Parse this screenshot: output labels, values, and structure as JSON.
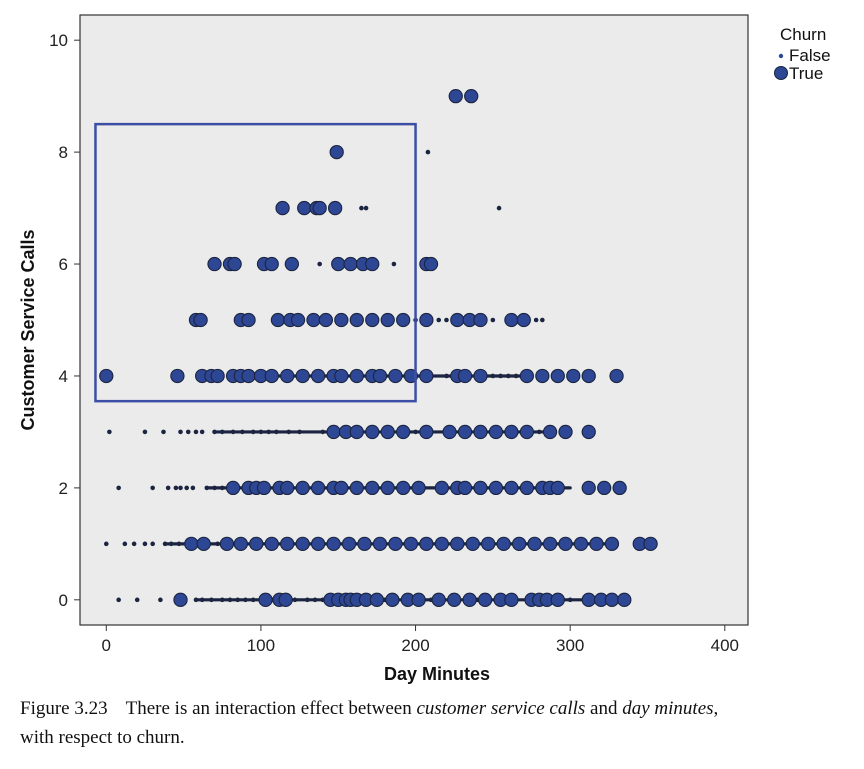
{
  "figure": {
    "caption_number": "Figure 3.23",
    "caption_parts": [
      "There is an interaction effect between ",
      "customer service calls",
      " and ",
      "day minutes",
      ",",
      "with respect to churn."
    ]
  },
  "chart_data": {
    "type": "scatter",
    "xlabel": "Day Minutes",
    "ylabel": "Customer Service Calls",
    "xlim": [
      -17,
      415
    ],
    "ylim": [
      -0.45,
      10.45
    ],
    "xticks": [
      0,
      100,
      200,
      300,
      400
    ],
    "yticks": [
      0,
      2,
      4,
      6,
      8,
      10
    ],
    "grid": false,
    "background": "#ebebeb",
    "marker_color": "#2d4795",
    "marker_edge": "#1b2440",
    "highlight_box": {
      "x_range": [
        -7,
        200
      ],
      "y_range": [
        3.55,
        8.5
      ],
      "color": "#3c4ea6"
    },
    "legend": {
      "title": "Churn",
      "entries": [
        "False",
        "True"
      ],
      "placement": "outside-top-right"
    },
    "series": [
      {
        "name": "False",
        "marker": "small",
        "rows": [
          {
            "y": 0,
            "x": [
              8,
              20,
              35,
              50,
              58,
              62,
              68,
              75,
              80,
              85,
              90,
              95,
              102,
              108,
              122,
              130,
              135,
              140,
              148,
              160,
              170,
              180,
              195,
              210,
              225,
              240,
              255,
              265,
              280,
              290,
              300,
              315,
              322,
              330
            ],
            "dense": [
              [
                58,
                100
              ],
              [
                120,
                335
              ]
            ]
          },
          {
            "y": 1,
            "x": [
              0,
              12,
              18,
              25,
              30,
              38,
              42,
              47,
              52,
              56,
              60,
              66,
              72,
              78,
              85,
              95,
              105,
              120,
              140,
              160,
              180,
              200,
              220,
              240,
              260,
              280,
              300,
              320,
              330
            ],
            "dense": [
              [
                38,
                330
              ]
            ]
          },
          {
            "y": 2,
            "x": [
              8,
              30,
              40,
              45,
              48,
              52,
              56,
              65,
              70,
              75,
              80,
              95,
              110,
              125,
              140,
              155,
              175,
              195,
              215,
              235,
              255,
              275,
              295
            ],
            "dense": [
              [
                65,
                300
              ]
            ]
          },
          {
            "y": 3,
            "x": [
              2,
              25,
              37,
              48,
              53,
              58,
              62,
              70,
              75,
              82,
              88,
              95,
              100,
              105,
              110,
              118,
              125,
              140,
              160,
              180,
              200,
              220,
              240,
              255,
              270,
              280,
              290
            ],
            "dense": [
              [
                70,
                290
              ]
            ]
          },
          {
            "y": 4,
            "x": [
              70,
              95,
              110,
              130,
              150,
              170,
              190,
              210,
              220,
              230,
              240,
              250,
              255,
              260,
              265,
              270
            ],
            "dense": [
              [
                100,
                270
              ]
            ]
          },
          {
            "y": 5,
            "x": [
              58,
              110,
              125,
              160,
              185,
              200,
              215,
              220,
              240,
              250,
              262,
              270,
              278,
              282
            ]
          },
          {
            "y": 6,
            "x": [
              138,
              186,
              207
            ]
          },
          {
            "y": 7,
            "x": [
              165,
              168,
              254
            ]
          },
          {
            "y": 8,
            "x": [
              208
            ]
          }
        ]
      },
      {
        "name": "True",
        "marker": "large",
        "rows": [
          {
            "y": 0,
            "x": [
              48,
              103,
              112,
              116,
              145,
              150,
              155,
              158,
              162,
              168,
              175,
              185,
              195,
              202,
              215,
              225,
              235,
              245,
              255,
              262,
              275,
              280,
              285,
              292,
              312,
              320,
              327,
              335
            ]
          },
          {
            "y": 1,
            "x": [
              55,
              63,
              78,
              87,
              97,
              107,
              117,
              127,
              137,
              147,
              157,
              167,
              177,
              187,
              197,
              207,
              217,
              227,
              237,
              247,
              257,
              267,
              277,
              287,
              297,
              307,
              317,
              327,
              345,
              352
            ]
          },
          {
            "y": 2,
            "x": [
              82,
              92,
              97,
              102,
              112,
              117,
              127,
              137,
              147,
              152,
              162,
              172,
              182,
              192,
              202,
              217,
              227,
              232,
              242,
              252,
              262,
              272,
              282,
              287,
              292,
              312,
              322,
              332
            ]
          },
          {
            "y": 3,
            "x": [
              147,
              155,
              162,
              172,
              182,
              192,
              207,
              222,
              232,
              242,
              252,
              262,
              272,
              287,
              297,
              312
            ]
          },
          {
            "y": 4,
            "x": [
              0,
              46,
              62,
              68,
              72,
              82,
              87,
              92,
              100,
              107,
              117,
              127,
              137,
              147,
              152,
              162,
              172,
              177,
              187,
              197,
              207,
              227,
              232,
              242,
              272,
              282,
              292,
              302,
              312,
              330
            ]
          },
          {
            "y": 5,
            "x": [
              58,
              61,
              87,
              92,
              111,
              119,
              124,
              134,
              142,
              152,
              162,
              172,
              182,
              192,
              207,
              227,
              235,
              242,
              262,
              270
            ]
          },
          {
            "y": 6,
            "x": [
              70,
              80,
              83,
              102,
              107,
              120,
              150,
              158,
              166,
              172,
              207,
              210
            ]
          },
          {
            "y": 7,
            "x": [
              114,
              128,
              136,
              138,
              148
            ]
          },
          {
            "y": 8,
            "x": [
              149
            ]
          },
          {
            "y": 9,
            "x": [
              226,
              236
            ]
          }
        ]
      }
    ]
  }
}
